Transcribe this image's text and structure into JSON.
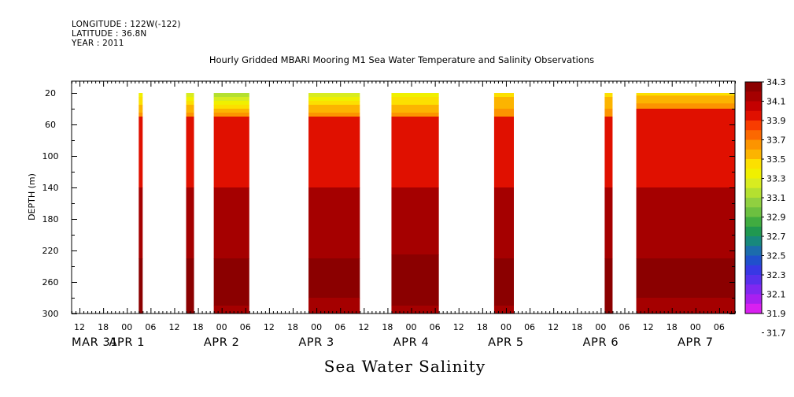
{
  "header": {
    "longitude": "LONGITUDE : 122W(-122)",
    "latitude": "LATITUDE : 36.8N",
    "year": "YEAR : 2011",
    "title": "Hourly Gridded MBARI Mooring M1 Sea Water Temperature and Salinity Observations"
  },
  "variable_title": "Sea Water Salinity",
  "colorbar": {
    "levels": [
      "34.3",
      "34.1",
      "33.9",
      "33.7",
      "33.5",
      "33.3",
      "33.1",
      "32.9",
      "32.7",
      "32.5",
      "32.3",
      "32.1",
      "31.9",
      "31.7"
    ],
    "colors": [
      "#8b0000",
      "#a50000",
      "#c40000",
      "#e01000",
      "#f83c00",
      "#fc6800",
      "#fc9400",
      "#fcb400",
      "#fce000",
      "#f0f000",
      "#d8ec20",
      "#b4e030",
      "#90d040",
      "#6cc040",
      "#40ac40",
      "#209850",
      "#18887c",
      "#1c6cac",
      "#2050cc",
      "#3838e4",
      "#5830ec",
      "#8028f0",
      "#a820f0",
      "#d820f0"
    ]
  },
  "chart_data": {
    "type": "heatmap",
    "title": "Hourly Gridded MBARI Mooring M1 Sea Water Temperature and Salinity Observations",
    "xlabel": "",
    "ylabel": "DEPTH (m)",
    "x_units": "hours since 2011-03-31 00:00",
    "xlim": [
      10,
      178
    ],
    "ylim": [
      300,
      5
    ],
    "y_ticks": [
      20,
      60,
      100,
      140,
      180,
      220,
      260,
      300
    ],
    "x_hour_ticks": [
      "12",
      "18",
      "00",
      "06",
      "12",
      "18",
      "00",
      "06",
      "12",
      "18",
      "00",
      "06",
      "12",
      "18",
      "00",
      "06",
      "12",
      "18",
      "00",
      "06",
      "12",
      "18",
      "00",
      "06",
      "12",
      "18",
      "00",
      "06"
    ],
    "x_day_labels": [
      "MAR 31",
      "APR 1",
      "APR 2",
      "APR 3",
      "APR 4",
      "APR 5",
      "APR 6",
      "APR 7"
    ],
    "colorbar_label": "",
    "data_segments": [
      {
        "start_hour": 27,
        "end_hour": 28,
        "surface_salinity": 33.3,
        "layers": [
          {
            "to_depth": 50,
            "salinity": 33.6
          },
          {
            "to_depth": 140,
            "salinity": 33.9
          },
          {
            "to_depth": 230,
            "salinity": 34.1
          },
          {
            "to_depth": 300,
            "salinity": 34.3
          }
        ]
      },
      {
        "start_hour": 39,
        "end_hour": 41,
        "surface_salinity": 33.2,
        "layers": [
          {
            "to_depth": 50,
            "salinity": 33.6
          },
          {
            "to_depth": 140,
            "salinity": 33.9
          },
          {
            "to_depth": 230,
            "salinity": 34.1
          },
          {
            "to_depth": 300,
            "salinity": 34.3
          }
        ]
      },
      {
        "start_hour": 46,
        "end_hour": 55,
        "surface_salinity": 33.1,
        "layers": [
          {
            "to_depth": 50,
            "salinity": 33.6
          },
          {
            "to_depth": 140,
            "salinity": 33.9
          },
          {
            "to_depth": 230,
            "salinity": 34.1
          },
          {
            "to_depth": 290,
            "salinity": 34.3
          },
          {
            "to_depth": 300,
            "salinity": 34.1
          }
        ]
      },
      {
        "start_hour": 70,
        "end_hour": 83,
        "surface_salinity": 33.2,
        "layers": [
          {
            "to_depth": 50,
            "salinity": 33.6
          },
          {
            "to_depth": 140,
            "salinity": 33.9
          },
          {
            "to_depth": 230,
            "salinity": 34.1
          },
          {
            "to_depth": 280,
            "salinity": 34.3
          },
          {
            "to_depth": 300,
            "salinity": 34.1
          }
        ]
      },
      {
        "start_hour": 91,
        "end_hour": 103,
        "surface_salinity": 33.3,
        "layers": [
          {
            "to_depth": 50,
            "salinity": 33.6
          },
          {
            "to_depth": 140,
            "salinity": 33.9
          },
          {
            "to_depth": 225,
            "salinity": 34.1
          },
          {
            "to_depth": 290,
            "salinity": 34.3
          },
          {
            "to_depth": 300,
            "salinity": 34.1
          }
        ]
      },
      {
        "start_hour": 117,
        "end_hour": 122,
        "surface_salinity": 33.4,
        "layers": [
          {
            "to_depth": 50,
            "salinity": 33.6
          },
          {
            "to_depth": 140,
            "salinity": 33.9
          },
          {
            "to_depth": 230,
            "salinity": 34.1
          },
          {
            "to_depth": 290,
            "salinity": 34.3
          },
          {
            "to_depth": 300,
            "salinity": 34.1
          }
        ]
      },
      {
        "start_hour": 145,
        "end_hour": 147,
        "surface_salinity": 33.4,
        "layers": [
          {
            "to_depth": 50,
            "salinity": 33.6
          },
          {
            "to_depth": 140,
            "salinity": 33.9
          },
          {
            "to_depth": 230,
            "salinity": 34.1
          },
          {
            "to_depth": 300,
            "salinity": 34.3
          }
        ]
      },
      {
        "start_hour": 153,
        "end_hour": 178,
        "surface_salinity": 33.4,
        "layers": [
          {
            "to_depth": 40,
            "salinity": 33.6
          },
          {
            "to_depth": 140,
            "salinity": 33.9
          },
          {
            "to_depth": 230,
            "salinity": 34.1
          },
          {
            "to_depth": 280,
            "salinity": 34.3
          },
          {
            "to_depth": 300,
            "salinity": 34.1
          }
        ]
      }
    ]
  }
}
